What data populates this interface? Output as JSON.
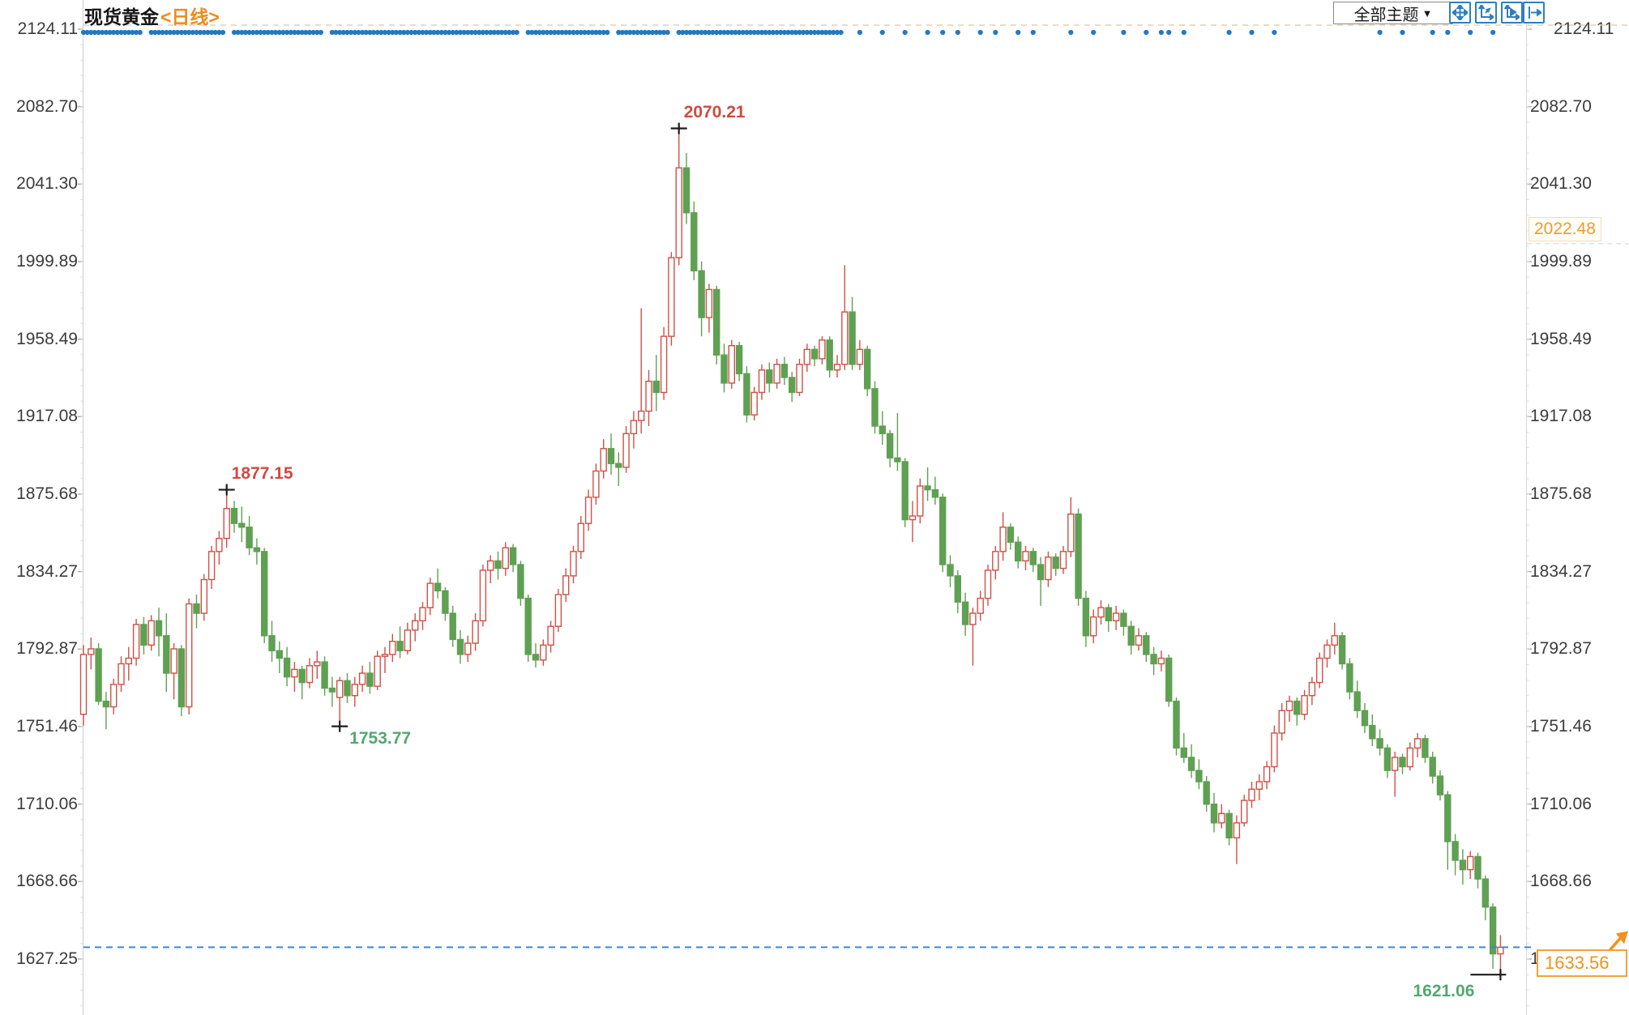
{
  "header": {
    "title": "现货黄金",
    "period_tag": "<日线>"
  },
  "toolbar": {
    "theme_button": {
      "label": "全部主题",
      "caret": "▼"
    },
    "icons": [
      "pan-icon",
      "fit-vertical-axis-icon",
      "fit-horizontal-axis-icon",
      "shift-right-icon"
    ]
  },
  "price_line": {
    "value": "1633.56"
  },
  "right_axis_extra": {
    "value": "2022.48"
  },
  "colors": {
    "up": "#cf5046",
    "down": "#5fa052",
    "annotation_high": "#cf4a41",
    "annotation_low": "#53a86e",
    "dots": "#2379bd",
    "price_line": "#3a87d8",
    "price_label": "#ef921e",
    "axis_text": "#3c3c3c",
    "title_tag": "#f08a1c",
    "button_blue": "#2f7fc0",
    "top_dashed_line": "#e9ceb0",
    "marker_cross": "#1c1c1c"
  },
  "chart_data": {
    "type": "candlestick",
    "title": "现货黄金 日线",
    "up_style": "hollow-red",
    "down_style": "solid-green",
    "y_axis": {
      "ticks": [
        "2124.11",
        "2082.70",
        "2041.30",
        "1999.89",
        "1958.49",
        "1917.08",
        "1875.68",
        "1834.27",
        "1792.87",
        "1751.46",
        "1710.06",
        "1668.66",
        "1627.25"
      ],
      "tick_step": 41.405,
      "sides": "both",
      "grid": "off"
    },
    "current_price": 1633.56,
    "marked_high_1": 1877.15,
    "marked_high_2": 2070.21,
    "marked_low_1": 1753.77,
    "marked_low_2": 1621.06,
    "annotations": [
      {
        "label": "1877.15",
        "index": 19,
        "kind": "high",
        "side": "right",
        "tail": false
      },
      {
        "label": "2070.21",
        "index": 79,
        "kind": "high",
        "side": "right",
        "tail": false
      },
      {
        "label": "1753.77",
        "index": 34,
        "kind": "low",
        "side": "right",
        "tail": false
      },
      {
        "label": "1621.06",
        "index": 188,
        "kind": "low",
        "side": "left",
        "tail": true
      }
    ],
    "event_dots": {
      "dense_index_ranges": [
        [
          0,
          7
        ],
        [
          9,
          18
        ],
        [
          20,
          31
        ],
        [
          33,
          57
        ],
        [
          59,
          69
        ],
        [
          71,
          77
        ],
        [
          79,
          100
        ]
      ],
      "sparse_indexes": [
        103,
        106,
        109,
        112,
        114,
        116,
        119,
        121,
        124,
        126,
        131,
        134,
        138,
        141,
        143,
        144,
        146,
        152,
        155,
        158,
        172,
        175,
        179,
        181,
        184,
        187
      ]
    },
    "candles": [
      [
        1758,
        1795,
        1752,
        1790
      ],
      [
        1790,
        1799,
        1782,
        1793
      ],
      [
        1793,
        1796,
        1763,
        1765
      ],
      [
        1765,
        1770,
        1750,
        1762
      ],
      [
        1762,
        1777,
        1758,
        1774
      ],
      [
        1774,
        1789,
        1770,
        1785
      ],
      [
        1785,
        1794,
        1776,
        1788
      ],
      [
        1788,
        1809,
        1784,
        1806
      ],
      [
        1806,
        1810,
        1790,
        1795
      ],
      [
        1795,
        1811,
        1792,
        1808
      ],
      [
        1808,
        1815,
        1789,
        1800
      ],
      [
        1800,
        1812,
        1770,
        1780
      ],
      [
        1780,
        1796,
        1766,
        1793
      ],
      [
        1793,
        1795,
        1757,
        1762
      ],
      [
        1762,
        1820,
        1758,
        1817
      ],
      [
        1817,
        1822,
        1804,
        1812
      ],
      [
        1812,
        1833,
        1808,
        1830
      ],
      [
        1830,
        1848,
        1825,
        1845
      ],
      [
        1845,
        1856,
        1838,
        1852
      ],
      [
        1852,
        1877.15,
        1847,
        1868
      ],
      [
        1868,
        1872,
        1855,
        1860
      ],
      [
        1860,
        1869,
        1850,
        1858
      ],
      [
        1858,
        1864,
        1843,
        1847
      ],
      [
        1847,
        1852,
        1838,
        1845
      ],
      [
        1845,
        1847,
        1796,
        1800
      ],
      [
        1800,
        1808,
        1786,
        1792
      ],
      [
        1792,
        1797,
        1780,
        1788
      ],
      [
        1788,
        1794,
        1773,
        1778
      ],
      [
        1778,
        1786,
        1770,
        1782
      ],
      [
        1782,
        1784,
        1766,
        1775
      ],
      [
        1775,
        1788,
        1772,
        1784
      ],
      [
        1784,
        1792,
        1777,
        1786
      ],
      [
        1786,
        1789,
        1768,
        1772
      ],
      [
        1772,
        1778,
        1762,
        1770
      ],
      [
        1767,
        1778,
        1753.77,
        1776
      ],
      [
        1776,
        1780,
        1764,
        1768
      ],
      [
        1768,
        1778,
        1762,
        1774
      ],
      [
        1774,
        1784,
        1770,
        1780
      ],
      [
        1780,
        1786,
        1769,
        1773
      ],
      [
        1773,
        1792,
        1771,
        1789
      ],
      [
        1789,
        1794,
        1780,
        1790
      ],
      [
        1790,
        1801,
        1786,
        1797
      ],
      [
        1797,
        1805,
        1788,
        1792
      ],
      [
        1792,
        1807,
        1790,
        1803
      ],
      [
        1803,
        1812,
        1797,
        1808
      ],
      [
        1808,
        1818,
        1803,
        1815
      ],
      [
        1815,
        1831,
        1811,
        1828
      ],
      [
        1828,
        1836,
        1820,
        1824
      ],
      [
        1824,
        1826,
        1808,
        1812
      ],
      [
        1812,
        1816,
        1794,
        1798
      ],
      [
        1798,
        1803,
        1785,
        1790
      ],
      [
        1790,
        1800,
        1786,
        1796
      ],
      [
        1796,
        1812,
        1792,
        1808
      ],
      [
        1808,
        1838,
        1805,
        1835
      ],
      [
        1835,
        1843,
        1828,
        1840
      ],
      [
        1840,
        1845,
        1830,
        1836
      ],
      [
        1836,
        1850,
        1832,
        1847
      ],
      [
        1847,
        1849,
        1834,
        1838
      ],
      [
        1838,
        1840,
        1816,
        1820
      ],
      [
        1820,
        1822,
        1786,
        1790
      ],
      [
        1790,
        1796,
        1783,
        1787
      ],
      [
        1787,
        1798,
        1784,
        1795
      ],
      [
        1795,
        1808,
        1791,
        1805
      ],
      [
        1805,
        1825,
        1802,
        1822
      ],
      [
        1822,
        1836,
        1818,
        1832
      ],
      [
        1832,
        1848,
        1828,
        1845
      ],
      [
        1845,
        1864,
        1841,
        1860
      ],
      [
        1860,
        1878,
        1856,
        1874
      ],
      [
        1874,
        1892,
        1870,
        1888
      ],
      [
        1888,
        1905,
        1884,
        1900
      ],
      [
        1900,
        1908,
        1886,
        1892
      ],
      [
        1892,
        1898,
        1880,
        1890
      ],
      [
        1890,
        1912,
        1887,
        1908
      ],
      [
        1908,
        1920,
        1900,
        1915
      ],
      [
        1915,
        1975,
        1908,
        1920
      ],
      [
        1920,
        1942,
        1912,
        1936
      ],
      [
        1936,
        1950,
        1920,
        1930
      ],
      [
        1930,
        1965,
        1926,
        1960
      ],
      [
        1960,
        2005,
        1955,
        2002
      ],
      [
        2002,
        2070.21,
        1998,
        2050
      ],
      [
        2050,
        2058,
        2020,
        2026
      ],
      [
        2026,
        2032,
        1990,
        1995
      ],
      [
        1995,
        2000,
        1960,
        1970
      ],
      [
        1970,
        1988,
        1962,
        1985
      ],
      [
        1985,
        1987,
        1945,
        1950
      ],
      [
        1950,
        1956,
        1930,
        1935
      ],
      [
        1935,
        1958,
        1932,
        1955
      ],
      [
        1955,
        1957,
        1936,
        1940
      ],
      [
        1940,
        1944,
        1914,
        1918
      ],
      [
        1918,
        1933,
        1915,
        1930
      ],
      [
        1930,
        1945,
        1926,
        1942
      ],
      [
        1942,
        1946,
        1930,
        1935
      ],
      [
        1935,
        1948,
        1932,
        1945
      ],
      [
        1945,
        1949,
        1934,
        1938
      ],
      [
        1938,
        1941,
        1925,
        1930
      ],
      [
        1930,
        1948,
        1928,
        1945
      ],
      [
        1945,
        1956,
        1941,
        1953
      ],
      [
        1953,
        1955,
        1944,
        1948
      ],
      [
        1948,
        1960,
        1945,
        1958
      ],
      [
        1958,
        1960,
        1938,
        1942
      ],
      [
        1942,
        1950,
        1938,
        1945
      ],
      [
        1945,
        1998,
        1942,
        1973
      ],
      [
        1973,
        1981,
        1942,
        1945
      ],
      [
        1945,
        1958,
        1942,
        1953
      ],
      [
        1953,
        1955,
        1928,
        1932
      ],
      [
        1932,
        1936,
        1908,
        1912
      ],
      [
        1912,
        1920,
        1902,
        1908
      ],
      [
        1908,
        1910,
        1890,
        1895
      ],
      [
        1895,
        1919,
        1888,
        1893
      ],
      [
        1893,
        1895,
        1858,
        1862
      ],
      [
        1862,
        1872,
        1850,
        1864
      ],
      [
        1864,
        1884,
        1860,
        1880
      ],
      [
        1880,
        1890,
        1872,
        1878
      ],
      [
        1878,
        1885,
        1870,
        1874
      ],
      [
        1874,
        1876,
        1834,
        1838
      ],
      [
        1838,
        1843,
        1826,
        1832
      ],
      [
        1832,
        1835,
        1812,
        1818
      ],
      [
        1818,
        1823,
        1800,
        1806
      ],
      [
        1806,
        1815,
        1784,
        1812
      ],
      [
        1812,
        1824,
        1808,
        1820
      ],
      [
        1820,
        1838,
        1816,
        1835
      ],
      [
        1835,
        1848,
        1830,
        1845
      ],
      [
        1845,
        1866,
        1840,
        1858
      ],
      [
        1858,
        1860,
        1846,
        1850
      ],
      [
        1850,
        1853,
        1836,
        1840
      ],
      [
        1840,
        1848,
        1835,
        1845
      ],
      [
        1845,
        1847,
        1834,
        1838
      ],
      [
        1838,
        1842,
        1816,
        1830
      ],
      [
        1830,
        1845,
        1826,
        1842
      ],
      [
        1842,
        1844,
        1832,
        1836
      ],
      [
        1836,
        1848,
        1833,
        1845
      ],
      [
        1845,
        1874,
        1842,
        1865
      ],
      [
        1865,
        1868,
        1816,
        1820
      ],
      [
        1820,
        1824,
        1794,
        1800
      ],
      [
        1800,
        1814,
        1796,
        1810
      ],
      [
        1810,
        1819,
        1806,
        1815
      ],
      [
        1815,
        1817,
        1802,
        1808
      ],
      [
        1808,
        1816,
        1803,
        1812
      ],
      [
        1812,
        1814,
        1800,
        1805
      ],
      [
        1805,
        1808,
        1790,
        1795
      ],
      [
        1795,
        1804,
        1792,
        1800
      ],
      [
        1800,
        1802,
        1786,
        1790
      ],
      [
        1790,
        1794,
        1779,
        1785
      ],
      [
        1785,
        1792,
        1781,
        1788
      ],
      [
        1788,
        1790,
        1762,
        1765
      ],
      [
        1765,
        1767,
        1736,
        1740
      ],
      [
        1740,
        1748,
        1732,
        1735
      ],
      [
        1735,
        1742,
        1724,
        1728
      ],
      [
        1728,
        1734,
        1718,
        1722
      ],
      [
        1722,
        1725,
        1706,
        1710
      ],
      [
        1710,
        1716,
        1695,
        1700
      ],
      [
        1700,
        1710,
        1697,
        1705
      ],
      [
        1705,
        1707,
        1688,
        1692
      ],
      [
        1692,
        1704,
        1678,
        1700
      ],
      [
        1700,
        1715,
        1698,
        1712
      ],
      [
        1712,
        1722,
        1708,
        1718
      ],
      [
        1718,
        1726,
        1712,
        1722
      ],
      [
        1722,
        1733,
        1718,
        1730
      ],
      [
        1730,
        1752,
        1727,
        1748
      ],
      [
        1748,
        1764,
        1744,
        1760
      ],
      [
        1760,
        1768,
        1754,
        1765
      ],
      [
        1765,
        1767,
        1752,
        1758
      ],
      [
        1758,
        1771,
        1755,
        1768
      ],
      [
        1768,
        1778,
        1763,
        1775
      ],
      [
        1775,
        1791,
        1772,
        1788
      ],
      [
        1788,
        1798,
        1783,
        1795
      ],
      [
        1795,
        1807,
        1790,
        1800
      ],
      [
        1800,
        1802,
        1782,
        1785
      ],
      [
        1785,
        1788,
        1766,
        1770
      ],
      [
        1770,
        1776,
        1756,
        1760
      ],
      [
        1760,
        1764,
        1748,
        1752
      ],
      [
        1752,
        1758,
        1741,
        1745
      ],
      [
        1745,
        1750,
        1736,
        1740
      ],
      [
        1740,
        1742,
        1724,
        1728
      ],
      [
        1728,
        1738,
        1714,
        1735
      ],
      [
        1735,
        1737,
        1726,
        1730
      ],
      [
        1730,
        1743,
        1728,
        1740
      ],
      [
        1740,
        1748,
        1735,
        1745
      ],
      [
        1745,
        1747,
        1732,
        1735
      ],
      [
        1735,
        1738,
        1721,
        1725
      ],
      [
        1725,
        1728,
        1712,
        1715
      ],
      [
        1715,
        1717,
        1675,
        1690
      ],
      [
        1690,
        1694,
        1672,
        1680
      ],
      [
        1680,
        1686,
        1667,
        1675
      ],
      [
        1675,
        1685,
        1670,
        1682
      ],
      [
        1682,
        1684,
        1665,
        1670
      ],
      [
        1670,
        1672,
        1648,
        1655
      ],
      [
        1655,
        1657,
        1622,
        1630
      ],
      [
        1630,
        1640,
        1621.06,
        1633.56
      ]
    ]
  }
}
